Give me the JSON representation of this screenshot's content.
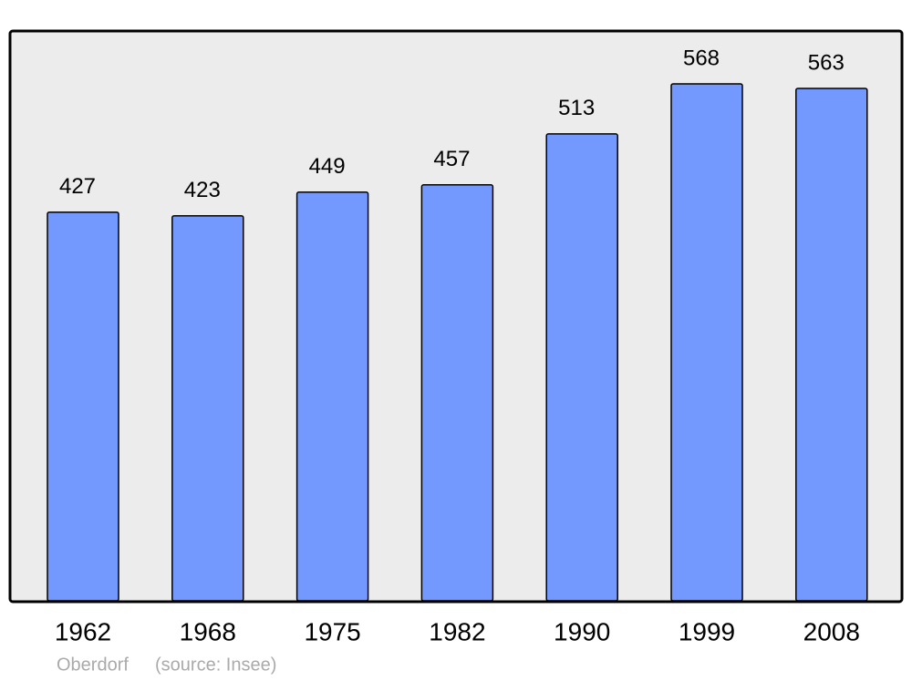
{
  "chart_data": {
    "type": "bar",
    "categories": [
      "1962",
      "1968",
      "1975",
      "1982",
      "1990",
      "1999",
      "2008"
    ],
    "values": [
      427,
      423,
      449,
      457,
      513,
      568,
      563
    ],
    "color": "#7399ff",
    "place": "Oberdorf",
    "source": "(source: Insee)"
  }
}
